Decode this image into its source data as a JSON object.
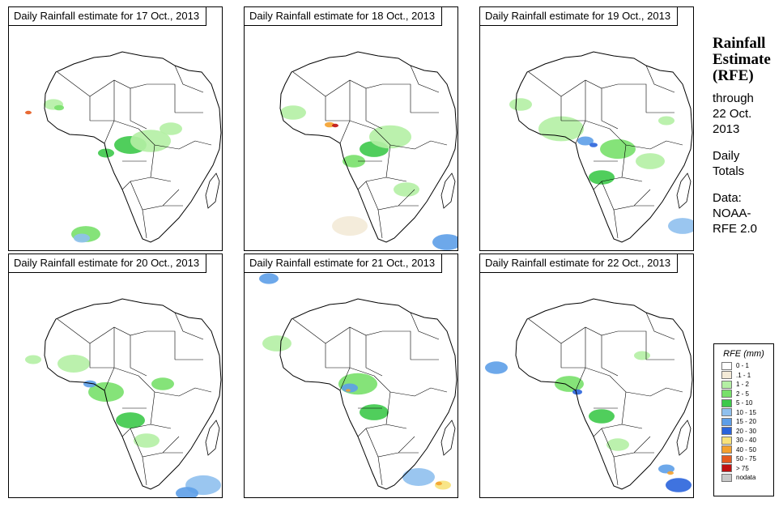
{
  "panels": [
    {
      "title": "Daily Rainfall estimate for  17 Oct., 2013"
    },
    {
      "title": "Daily Rainfall estimate for  18 Oct., 2013"
    },
    {
      "title": "Daily Rainfall estimate for  19 Oct., 2013"
    },
    {
      "title": "Daily Rainfall estimate for  20 Oct., 2013"
    },
    {
      "title": "Daily Rainfall estimate for  21 Oct., 2013"
    },
    {
      "title": "Daily Rainfall estimate for  22 Oct., 2013"
    }
  ],
  "side": {
    "title_line1": "Rainfall",
    "title_line2": "Estimate",
    "title_line3": "(RFE)",
    "through_label": "through",
    "through_date": "22 Oct.",
    "through_year": "2013",
    "daily": "Daily",
    "totals": "Totals",
    "data_label": "Data:",
    "data_source1": "NOAA-",
    "data_source2": "RFE 2.0"
  },
  "legend": {
    "title": "RFE (mm)",
    "items": [
      {
        "label": "0 - 1",
        "color": "#ffffff"
      },
      {
        "label": ".1 - 1",
        "color": "#f3ead7"
      },
      {
        "label": "1 - 2",
        "color": "#b4efa4"
      },
      {
        "label": "2 - 5",
        "color": "#78e06a"
      },
      {
        "label": "5 - 10",
        "color": "#3dc94a"
      },
      {
        "label": "10 - 15",
        "color": "#8fc0ee"
      },
      {
        "label": "15 - 20",
        "color": "#5d9ee8"
      },
      {
        "label": "20 - 30",
        "color": "#2a64dc"
      },
      {
        "label": "30 - 40",
        "color": "#f7e27a"
      },
      {
        "label": "40 - 50",
        "color": "#f4a12e"
      },
      {
        "label": "50 - 75",
        "color": "#e55a1e"
      },
      {
        "label": "> 75",
        "color": "#c01010"
      },
      {
        "label": "nodata",
        "color": "#c8c8c8"
      }
    ]
  }
}
